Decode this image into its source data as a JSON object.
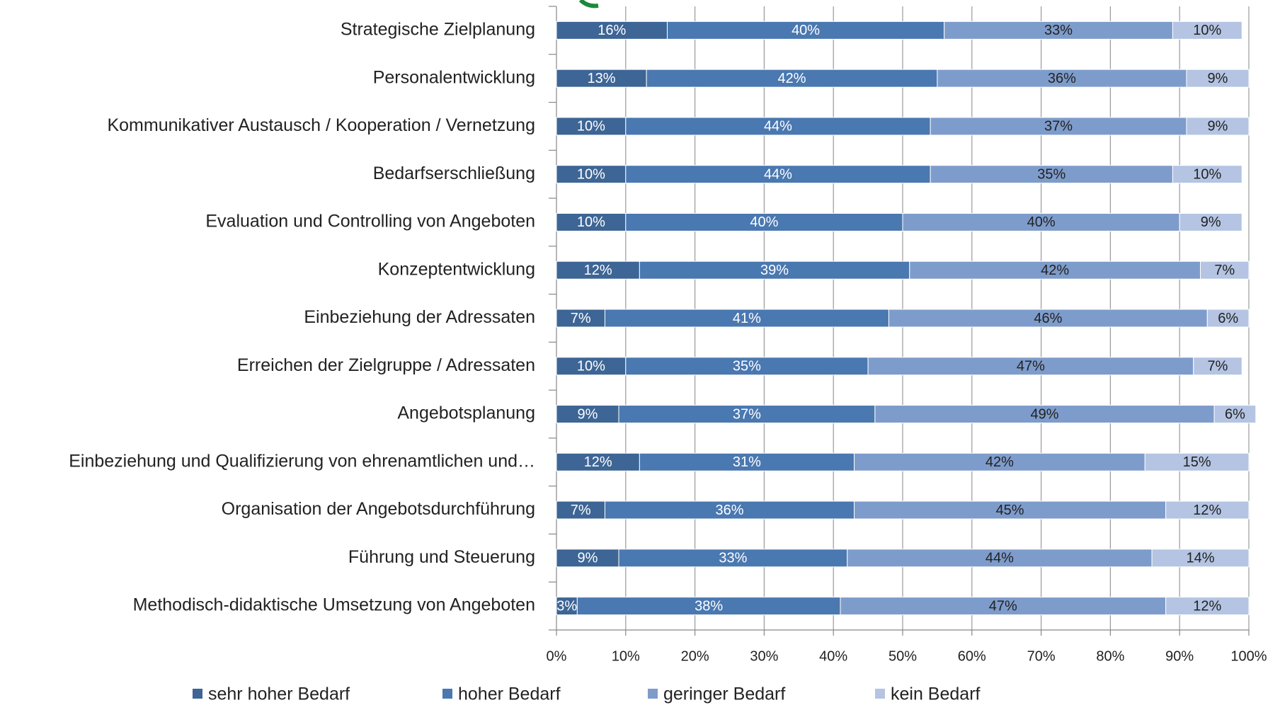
{
  "chart_data": {
    "type": "bar",
    "orientation": "horizontal",
    "stacked": true,
    "categories": [
      "Strategische Zielplanung",
      "Personalentwicklung",
      "Kommunikativer Austausch / Kooperation / Vernetzung",
      "Bedarfserschließung",
      "Evaluation und Controlling von Angeboten",
      "Konzeptentwicklung",
      "Einbeziehung der Adressaten",
      "Erreichen der Zielgruppe / Adressaten",
      "Angebotsplanung",
      "Einbeziehung und Qualifizierung von ehrenamtlichen und…",
      "Organisation der Angebotsdurchführung",
      "Führung und Steuerung",
      "Methodisch-didaktische Umsetzung von Angeboten"
    ],
    "series": [
      {
        "name": "sehr hoher Bedarf",
        "color": "#3d6595",
        "values": [
          16,
          13,
          10,
          10,
          10,
          12,
          7,
          10,
          9,
          12,
          7,
          9,
          3
        ],
        "value_labels": [
          "16%",
          "13%",
          "10%",
          "10%",
          "10%",
          "12%",
          "7%",
          "10%",
          "9%",
          "12%",
          "7%",
          "9%",
          "3%"
        ]
      },
      {
        "name": "hoher Bedarf",
        "color": "#4a78b0",
        "values": [
          40,
          42,
          44,
          44,
          40,
          39,
          41,
          35,
          37,
          31,
          36,
          33,
          38
        ],
        "value_labels": [
          "40%",
          "42%",
          "44%",
          "44%",
          "40%",
          "39%",
          "41%",
          "35%",
          "37%",
          "31%",
          "36%",
          "33%",
          "38%"
        ]
      },
      {
        "name": "geringer Bedarf",
        "color": "#7e9ccb",
        "values": [
          33,
          36,
          37,
          35,
          40,
          42,
          46,
          47,
          49,
          42,
          45,
          44,
          47
        ],
        "value_labels": [
          "33%",
          "36%",
          "37%",
          "35%",
          "40%",
          "42%",
          "46%",
          "47%",
          "49%",
          "42%",
          "45%",
          "44%",
          "47%"
        ]
      },
      {
        "name": "kein Bedarf",
        "color": "#b4c4e2",
        "values": [
          10,
          9,
          9,
          10,
          9,
          7,
          6,
          7,
          6,
          15,
          12,
          14,
          12
        ],
        "value_labels": [
          "10%",
          "9%",
          "9%",
          "10%",
          "9%",
          "7%",
          "6%",
          "7%",
          "6%",
          "15%",
          "12%",
          "14%",
          "12%"
        ]
      }
    ],
    "xlim": [
      0,
      100
    ],
    "xticks": [
      {
        "value": 0,
        "label": "0%"
      },
      {
        "value": 10,
        "label": "10%"
      },
      {
        "value": 20,
        "label": "20%"
      },
      {
        "value": 30,
        "label": "30%"
      },
      {
        "value": 40,
        "label": "40%"
      },
      {
        "value": 50,
        "label": "50%"
      },
      {
        "value": 60,
        "label": "60%"
      },
      {
        "value": 70,
        "label": "70%"
      },
      {
        "value": 80,
        "label": "80%"
      },
      {
        "value": 90,
        "label": "90%"
      },
      {
        "value": 100,
        "label": "100%"
      }
    ],
    "grid": true,
    "legend": "bottom"
  }
}
